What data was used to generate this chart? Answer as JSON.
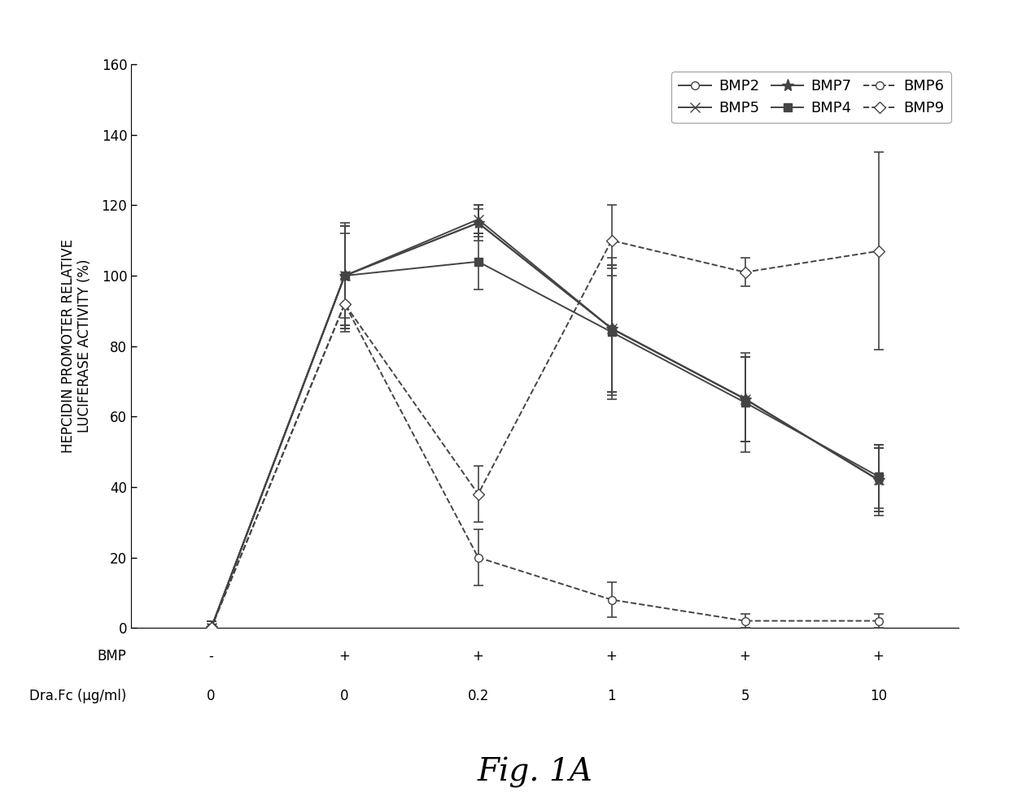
{
  "x_positions": [
    0,
    1,
    2,
    3,
    4,
    5
  ],
  "x_labels_bmp": [
    "-",
    "+",
    "+",
    "+",
    "+",
    "+"
  ],
  "x_labels_drafc": [
    "0",
    "0",
    "0.2",
    "1",
    "5",
    "10"
  ],
  "ylabel_line1": "HEPCIDIN PROMOTER RELATIVE",
  "ylabel_line2": "LUCIFERASE ACTIVITY (%)",
  "xlabel_bmp": "BMP",
  "xlabel_drafc": "Dra.Fc (μg/ml)",
  "fig_label": "Fig. 1A",
  "ylim": [
    0,
    160
  ],
  "yticks": [
    0,
    20,
    40,
    60,
    80,
    100,
    120,
    140,
    160
  ],
  "xlim": [
    -0.6,
    5.6
  ],
  "series": {
    "BMP2": {
      "y": [
        0,
        100,
        115,
        85,
        65,
        42
      ],
      "yerr": [
        2,
        15,
        5,
        20,
        12,
        10
      ],
      "linestyle": "-",
      "marker": "o",
      "mfc": "white",
      "mec": "#444444",
      "ms": 7
    },
    "BMP4": {
      "y": [
        0,
        100,
        104,
        84,
        64,
        43
      ],
      "yerr": [
        2,
        12,
        8,
        18,
        14,
        9
      ],
      "linestyle": "-",
      "marker": "s",
      "mfc": "#444444",
      "mec": "#444444",
      "ms": 7
    },
    "BMP5": {
      "y": [
        0,
        100,
        116,
        85,
        65,
        42
      ],
      "yerr": [
        2,
        14,
        4,
        18,
        12,
        9
      ],
      "linestyle": "-",
      "marker": "x",
      "mfc": "#444444",
      "mec": "#444444",
      "ms": 9
    },
    "BMP6": {
      "y": [
        0,
        92,
        20,
        8,
        2,
        2
      ],
      "yerr": [
        2,
        8,
        8,
        5,
        2,
        2
      ],
      "linestyle": "--",
      "marker": "o",
      "mfc": "white",
      "mec": "#444444",
      "ms": 7
    },
    "BMP7": {
      "y": [
        0,
        100,
        115,
        85,
        65,
        42
      ],
      "yerr": [
        2,
        14,
        4,
        18,
        12,
        9
      ],
      "linestyle": "-",
      "marker": "*",
      "mfc": "#444444",
      "mec": "#444444",
      "ms": 11
    },
    "BMP9": {
      "y": [
        0,
        92,
        38,
        110,
        101,
        107
      ],
      "yerr": [
        2,
        7,
        8,
        10,
        4,
        28
      ],
      "linestyle": "--",
      "marker": "D",
      "mfc": "white",
      "mec": "#444444",
      "ms": 7
    }
  },
  "color": "#444444",
  "linewidth": 1.4,
  "capsize": 4,
  "elinewidth": 1.2,
  "capthick": 1.2,
  "background_color": "#ffffff",
  "legend_order": [
    "BMP2",
    "BMP5",
    "BMP7",
    "BMP4",
    "BMP6",
    "BMP9"
  ],
  "legend_fontsize": 13,
  "ylabel_fontsize": 12,
  "tick_fontsize": 12,
  "xlabel_fontsize": 12,
  "fig_label_fontsize": 28
}
